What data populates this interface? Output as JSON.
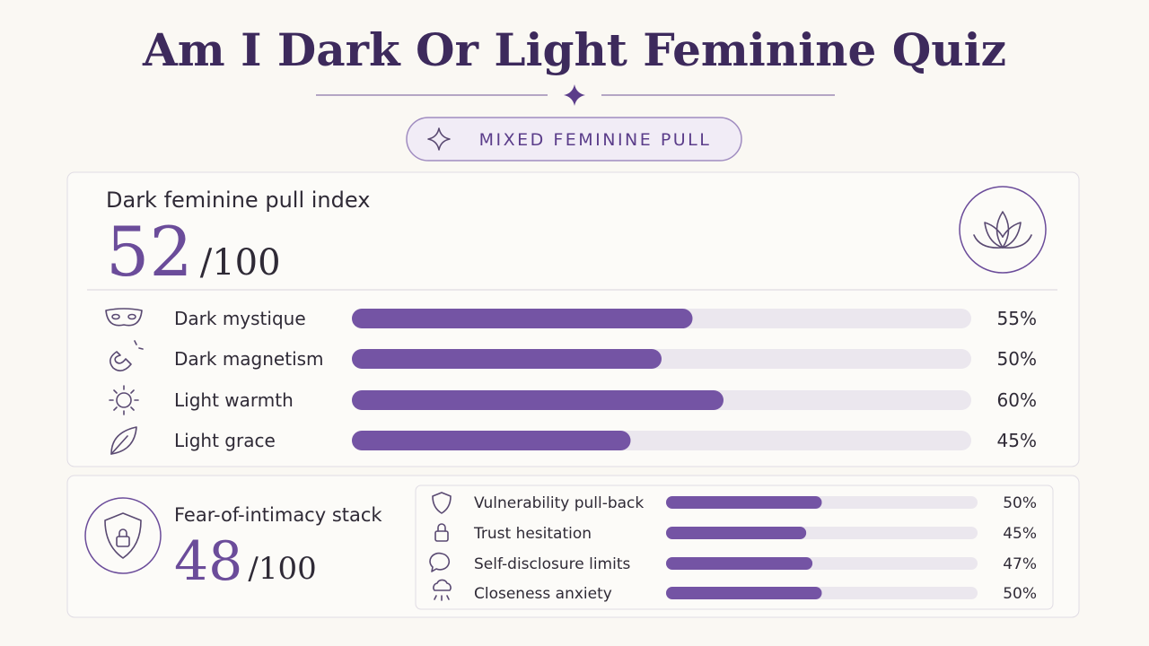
{
  "header": {
    "title": "Am I Dark Or Light Feminine Quiz",
    "badge": "MIXED FEMININE PULL"
  },
  "main_score": {
    "label": "Dark feminine pull index",
    "score": 52,
    "max": {
      "value": 100,
      "label": "/100"
    },
    "items": [
      {
        "label": "Dark mystique",
        "value": 55,
        "value_label": "55%"
      },
      {
        "label": "Dark magnetism",
        "value": 50,
        "value_label": "50%"
      },
      {
        "label": "Light warmth",
        "value": 60,
        "value_label": "60%"
      },
      {
        "label": "Light grace",
        "value": 45,
        "value_label": "45%"
      }
    ]
  },
  "secondary_score": {
    "label": "Fear-of-intimacy stack",
    "score": 48,
    "max": {
      "value": 100,
      "label": "/100"
    },
    "items": [
      {
        "label": "Vulnerability pull-back",
        "value": 50,
        "value_label": "50%"
      },
      {
        "label": "Trust hesitation",
        "value": 45,
        "value_label": "45%"
      },
      {
        "label": "Self-disclosure limits",
        "value": 47,
        "value_label": "47%"
      },
      {
        "label": "Closeness anxiety",
        "value": 50,
        "value_label": "50%"
      }
    ]
  }
}
